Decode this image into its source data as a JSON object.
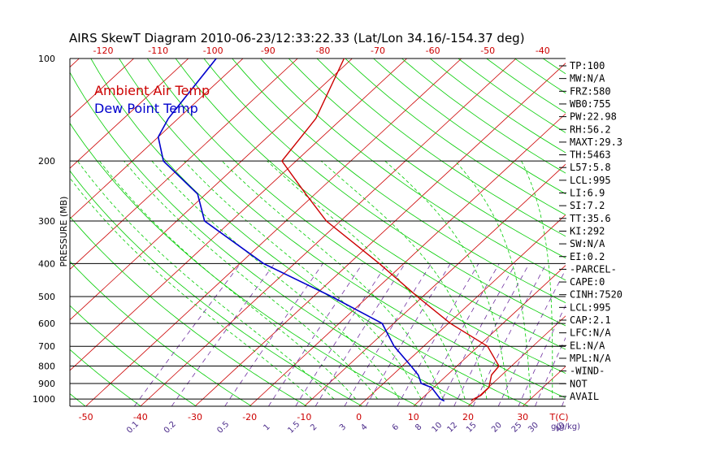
{
  "chart_data": {
    "type": "line",
    "title": "AIRS SkewT Diagram 2010-06-23/12:33:22.33 (Lat/Lon 34.16/-154.37 deg)",
    "ylabel": "PRESSURE (MB)",
    "xlabel": "T(C)",
    "y_scale": "log",
    "ylim": [
      1050,
      100
    ],
    "pressure_ticks": [
      100,
      200,
      300,
      400,
      500,
      600,
      700,
      800,
      900,
      1000
    ],
    "top_temp_ticks": [
      -120,
      -110,
      -100,
      -90,
      -80,
      -70,
      -60,
      -50,
      -40
    ],
    "bottom_temp_ticks": [
      -50,
      -40,
      -30,
      -20,
      -10,
      0,
      10,
      20,
      30
    ],
    "mixing_ratio_label": "g(g/kg)",
    "mixing_ratio_ticks": [
      "0.1",
      "0.2",
      "0.5",
      "1",
      "1.5",
      "2",
      "3",
      "4",
      "6",
      "8",
      "10",
      "12",
      "15",
      "20",
      "25",
      "30",
      "40"
    ],
    "legend": [
      "Ambient Air Temp",
      "Dew Point Temp"
    ],
    "series": [
      {
        "name": "Ambient Air Temp",
        "color": "#cc0000",
        "points": [
          {
            "p": 1013,
            "t": 19.5
          },
          {
            "p": 1000,
            "t": 19.6
          },
          {
            "p": 975,
            "t": 20.2
          },
          {
            "p": 925,
            "t": 20.1
          },
          {
            "p": 850,
            "t": 18.1
          },
          {
            "p": 800,
            "t": 17.7
          },
          {
            "p": 700,
            "t": 11.7
          },
          {
            "p": 600,
            "t": 0.4
          },
          {
            "p": 500,
            "t": -11.0
          },
          {
            "p": 400,
            "t": -24.5
          },
          {
            "p": 300,
            "t": -42.6
          },
          {
            "p": 250,
            "t": -51.7
          },
          {
            "p": 200,
            "t": -62.6
          },
          {
            "p": 150,
            "t": -64.8
          },
          {
            "p": 100,
            "t": -71.5
          }
        ]
      },
      {
        "name": "Dew Point Temp",
        "color": "#0000cc",
        "points": [
          {
            "p": 1013,
            "t": 14.6
          },
          {
            "p": 1000,
            "t": 13.5
          },
          {
            "p": 925,
            "t": 9.6
          },
          {
            "p": 900,
            "t": 6.9
          },
          {
            "p": 850,
            "t": 4.7
          },
          {
            "p": 800,
            "t": 1.6
          },
          {
            "p": 700,
            "t": -5.4
          },
          {
            "p": 600,
            "t": -12.1
          },
          {
            "p": 500,
            "t": -26.7
          },
          {
            "p": 400,
            "t": -45.7
          },
          {
            "p": 300,
            "t": -64.9
          },
          {
            "p": 250,
            "t": -71.5
          },
          {
            "p": 200,
            "t": -84.3
          },
          {
            "p": 170,
            "t": -90.0
          },
          {
            "p": 150,
            "t": -91.8
          },
          {
            "p": 100,
            "t": -94.9
          }
        ]
      }
    ],
    "indices": [
      "TP:100",
      "MW:N/A",
      "FRZ:580",
      "WB0:755",
      "PW:22.98",
      "RH:56.2",
      "MAXT:29.3",
      "TH:5463",
      "L57:5.8",
      "LCL:995",
      "LI:6.9",
      "SI:7.2",
      "TT:35.6",
      "KI:292",
      "SW:N/A",
      "EI:0.2",
      "-PARCEL-",
      "CAPE:0",
      "CINH:7520",
      "LCL:995",
      "CAP:2.1",
      "LFC:N/A",
      "EL:N/A",
      "MPL:N/A",
      "-WIND-",
      "NOT",
      "AVAIL"
    ],
    "colors": {
      "isotherm": "#cc0000",
      "dry_adiabat": "#00cc00",
      "moist_adiabat": "#00cc00",
      "mixing_ratio": "#7030a0",
      "isobar": "#000000"
    },
    "grid": true,
    "legend_position": "top-left"
  }
}
